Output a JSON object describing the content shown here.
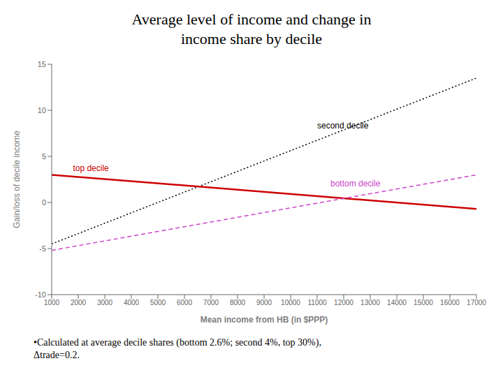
{
  "chart_data": {
    "type": "line",
    "title": "Average level of income and change in\nincome share by decile",
    "x_label": "Mean income from HB (in $PPP)",
    "y_label": "Gain/loss of decile income",
    "x": [
      1000,
      17000
    ],
    "series": [
      {
        "name": "second decile",
        "color": "#000000",
        "line_style": "dotted",
        "values": [
          -4.5,
          13.5
        ]
      },
      {
        "name": "top decile",
        "color": "#cc0000",
        "line_style": "solid",
        "values": [
          3.0,
          -0.7
        ]
      },
      {
        "name": "bottom decile",
        "color": "#cc44cc",
        "line_style": "dashed",
        "values": [
          -5.2,
          3.0
        ]
      }
    ],
    "xlim": [
      1000,
      17000
    ],
    "ylim": [
      -10,
      15
    ],
    "xticks": [
      1000,
      2000,
      3000,
      4000,
      5000,
      6000,
      7000,
      8000,
      9000,
      10000,
      11000,
      12000,
      13000,
      14000,
      15000,
      16000,
      17000
    ],
    "yticks": [
      -10,
      -5,
      0,
      5,
      10,
      15
    ],
    "annotations": [
      {
        "text": "second decile",
        "x": 11000,
        "y": 7.8,
        "color": "#000000"
      },
      {
        "text": "top decile",
        "x": 1800,
        "y": 3.2,
        "color": "#cc0000"
      },
      {
        "text": "bottom decile",
        "x": 11500,
        "y": 1.5,
        "color": "#cc44cc"
      }
    ],
    "footnote": "•Calculated at average decile shares (bottom 2.6%; second 4%, top 30%),\nΔtrade=0.2.",
    "grid": false
  }
}
